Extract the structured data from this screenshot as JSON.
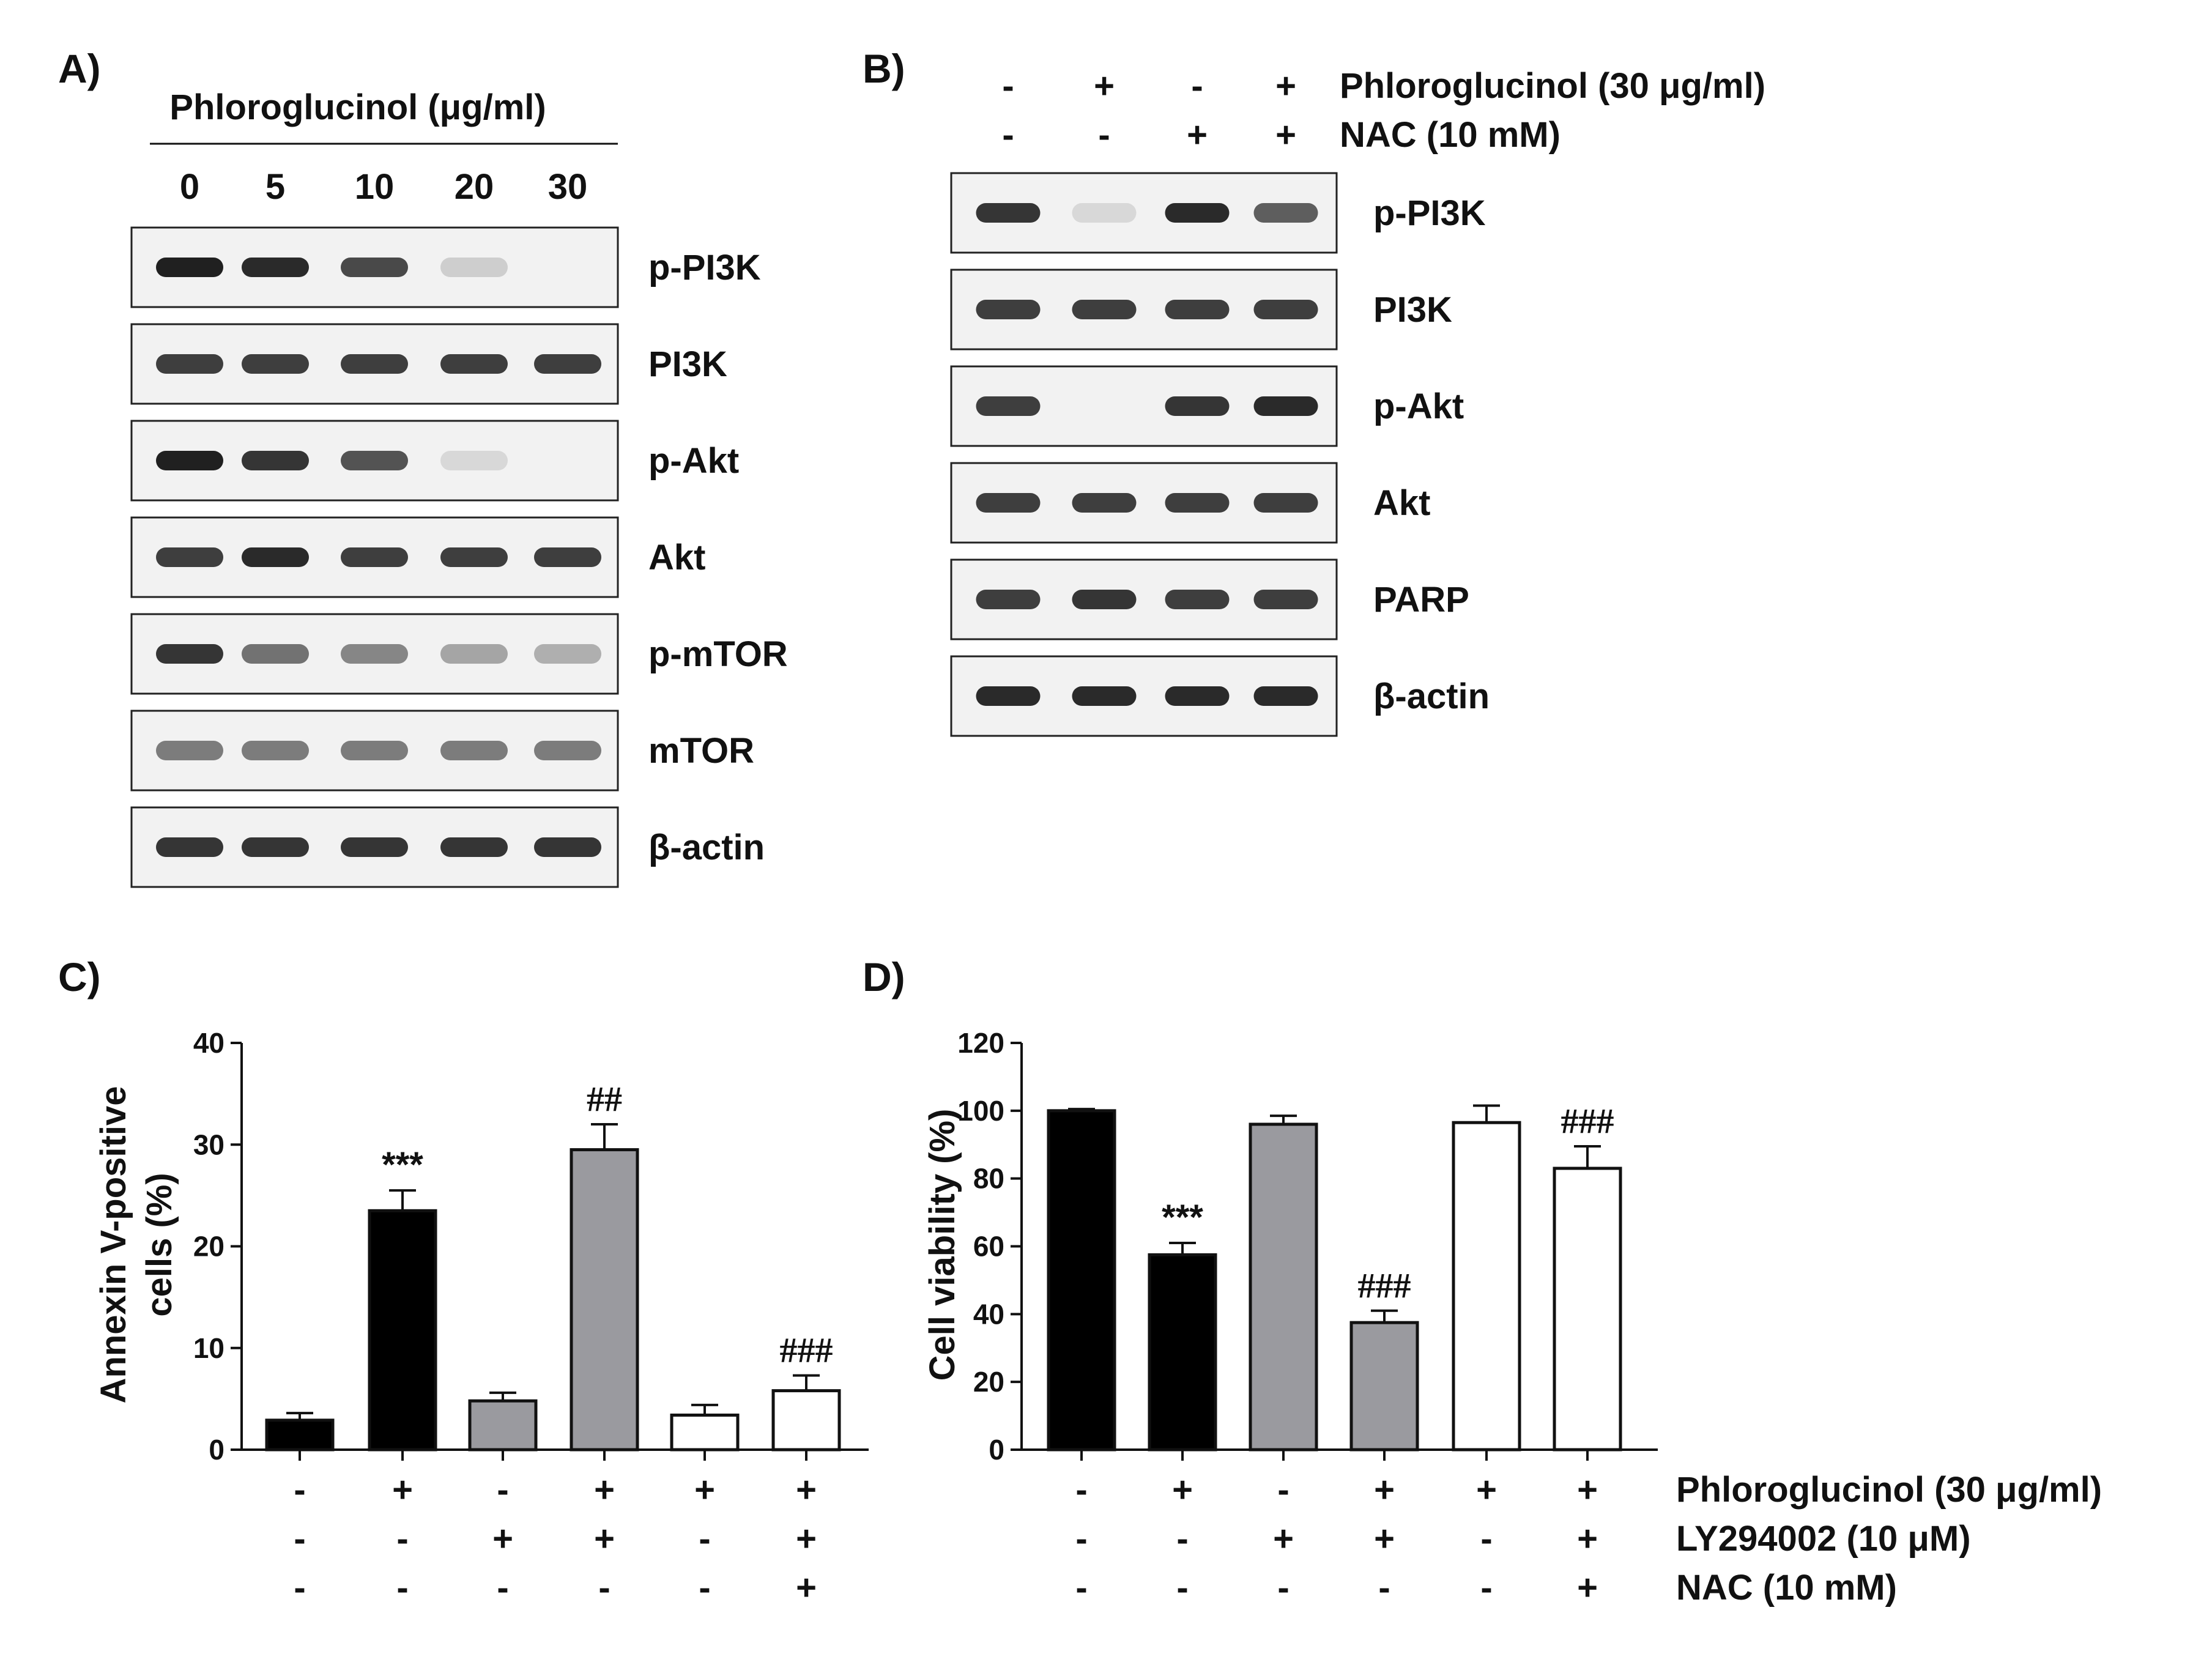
{
  "panelA": {
    "letter": "A)",
    "header": "Phloroglucinol (μg/ml)",
    "lanes": [
      "0",
      "5",
      "10",
      "20",
      "30"
    ],
    "blots": [
      {
        "label": "p-PI3K",
        "intensity": [
          1.0,
          0.95,
          0.8,
          0.15,
          0.0
        ]
      },
      {
        "label": "PI3K",
        "intensity": [
          0.85,
          0.85,
          0.85,
          0.85,
          0.85
        ]
      },
      {
        "label": "p-Akt",
        "intensity": [
          1.0,
          0.9,
          0.75,
          0.1,
          0.0
        ]
      },
      {
        "label": "Akt",
        "intensity": [
          0.85,
          0.95,
          0.85,
          0.85,
          0.85
        ]
      },
      {
        "label": "p-mTOR",
        "intensity": [
          0.9,
          0.6,
          0.5,
          0.35,
          0.3
        ]
      },
      {
        "label": "mTOR",
        "intensity": [
          0.55,
          0.55,
          0.55,
          0.55,
          0.55
        ]
      },
      {
        "label": "β-actin",
        "intensity": [
          0.9,
          0.9,
          0.9,
          0.9,
          0.9
        ]
      }
    ]
  },
  "panelB": {
    "letter": "B)",
    "treatments": [
      {
        "label": "Phloroglucinol (30 μg/ml)",
        "signs": [
          "-",
          "+",
          "-",
          "+"
        ]
      },
      {
        "label": "NAC (10 mM)",
        "signs": [
          "-",
          "-",
          "+",
          "+"
        ]
      }
    ],
    "blots": [
      {
        "label": "p-PI3K",
        "intensity": [
          0.9,
          0.1,
          0.95,
          0.7
        ]
      },
      {
        "label": "PI3K",
        "intensity": [
          0.85,
          0.85,
          0.85,
          0.85
        ]
      },
      {
        "label": "p-Akt",
        "intensity": [
          0.85,
          0.0,
          0.9,
          0.95
        ]
      },
      {
        "label": "Akt",
        "intensity": [
          0.85,
          0.85,
          0.85,
          0.85
        ]
      },
      {
        "label": "PARP",
        "intensity": [
          0.85,
          0.9,
          0.85,
          0.85
        ]
      },
      {
        "label": "β-actin",
        "intensity": [
          0.95,
          0.95,
          0.95,
          0.95
        ]
      }
    ]
  },
  "chart_data": [
    {
      "panel": "C)",
      "type": "bar",
      "ylabel_line1": "Annexin V-positive",
      "ylabel_line2": "cells (%)",
      "ylim": [
        0,
        40
      ],
      "yticks": [
        "0",
        "10",
        "20",
        "30",
        "40"
      ],
      "values": [
        2.9,
        23.5,
        4.8,
        29.5,
        3.4,
        5.8
      ],
      "errors": [
        0.7,
        2.0,
        0.8,
        2.5,
        1.0,
        1.5
      ],
      "bar_colors": [
        "#000000",
        "#000000",
        "#9a9a9f",
        "#9a9a9f",
        "#ffffff",
        "#ffffff"
      ],
      "annotations": [
        "",
        "***",
        "",
        "##",
        "",
        "###"
      ],
      "treatment_rows": [
        [
          "-",
          "+",
          "-",
          "+",
          "+",
          "+"
        ],
        [
          "-",
          "-",
          "+",
          "+",
          "-",
          "+"
        ],
        [
          "-",
          "-",
          "-",
          "-",
          "-",
          "+"
        ]
      ]
    },
    {
      "panel": "D)",
      "type": "bar",
      "ylabel": "Cell viability (%)",
      "ylim": [
        0,
        120
      ],
      "yticks": [
        "0",
        "20",
        "40",
        "60",
        "80",
        "100",
        "120"
      ],
      "values": [
        100,
        57.5,
        96,
        37.5,
        96.5,
        83
      ],
      "errors": [
        0.5,
        3.5,
        2.5,
        3.5,
        5,
        6.5
      ],
      "bar_colors": [
        "#000000",
        "#000000",
        "#9a9a9f",
        "#9a9a9f",
        "#ffffff",
        "#ffffff"
      ],
      "annotations": [
        "",
        "***",
        "",
        "###",
        "",
        "###"
      ],
      "treatment_rows": [
        [
          "-",
          "+",
          "-",
          "+",
          "+",
          "+"
        ],
        [
          "-",
          "-",
          "+",
          "+",
          "-",
          "+"
        ],
        [
          "-",
          "-",
          "-",
          "-",
          "-",
          "+"
        ]
      ],
      "treatment_labels": [
        "Phloroglucinol (30 μg/ml)",
        "LY294002 (10 μM)",
        "NAC (10 mM)"
      ]
    }
  ]
}
